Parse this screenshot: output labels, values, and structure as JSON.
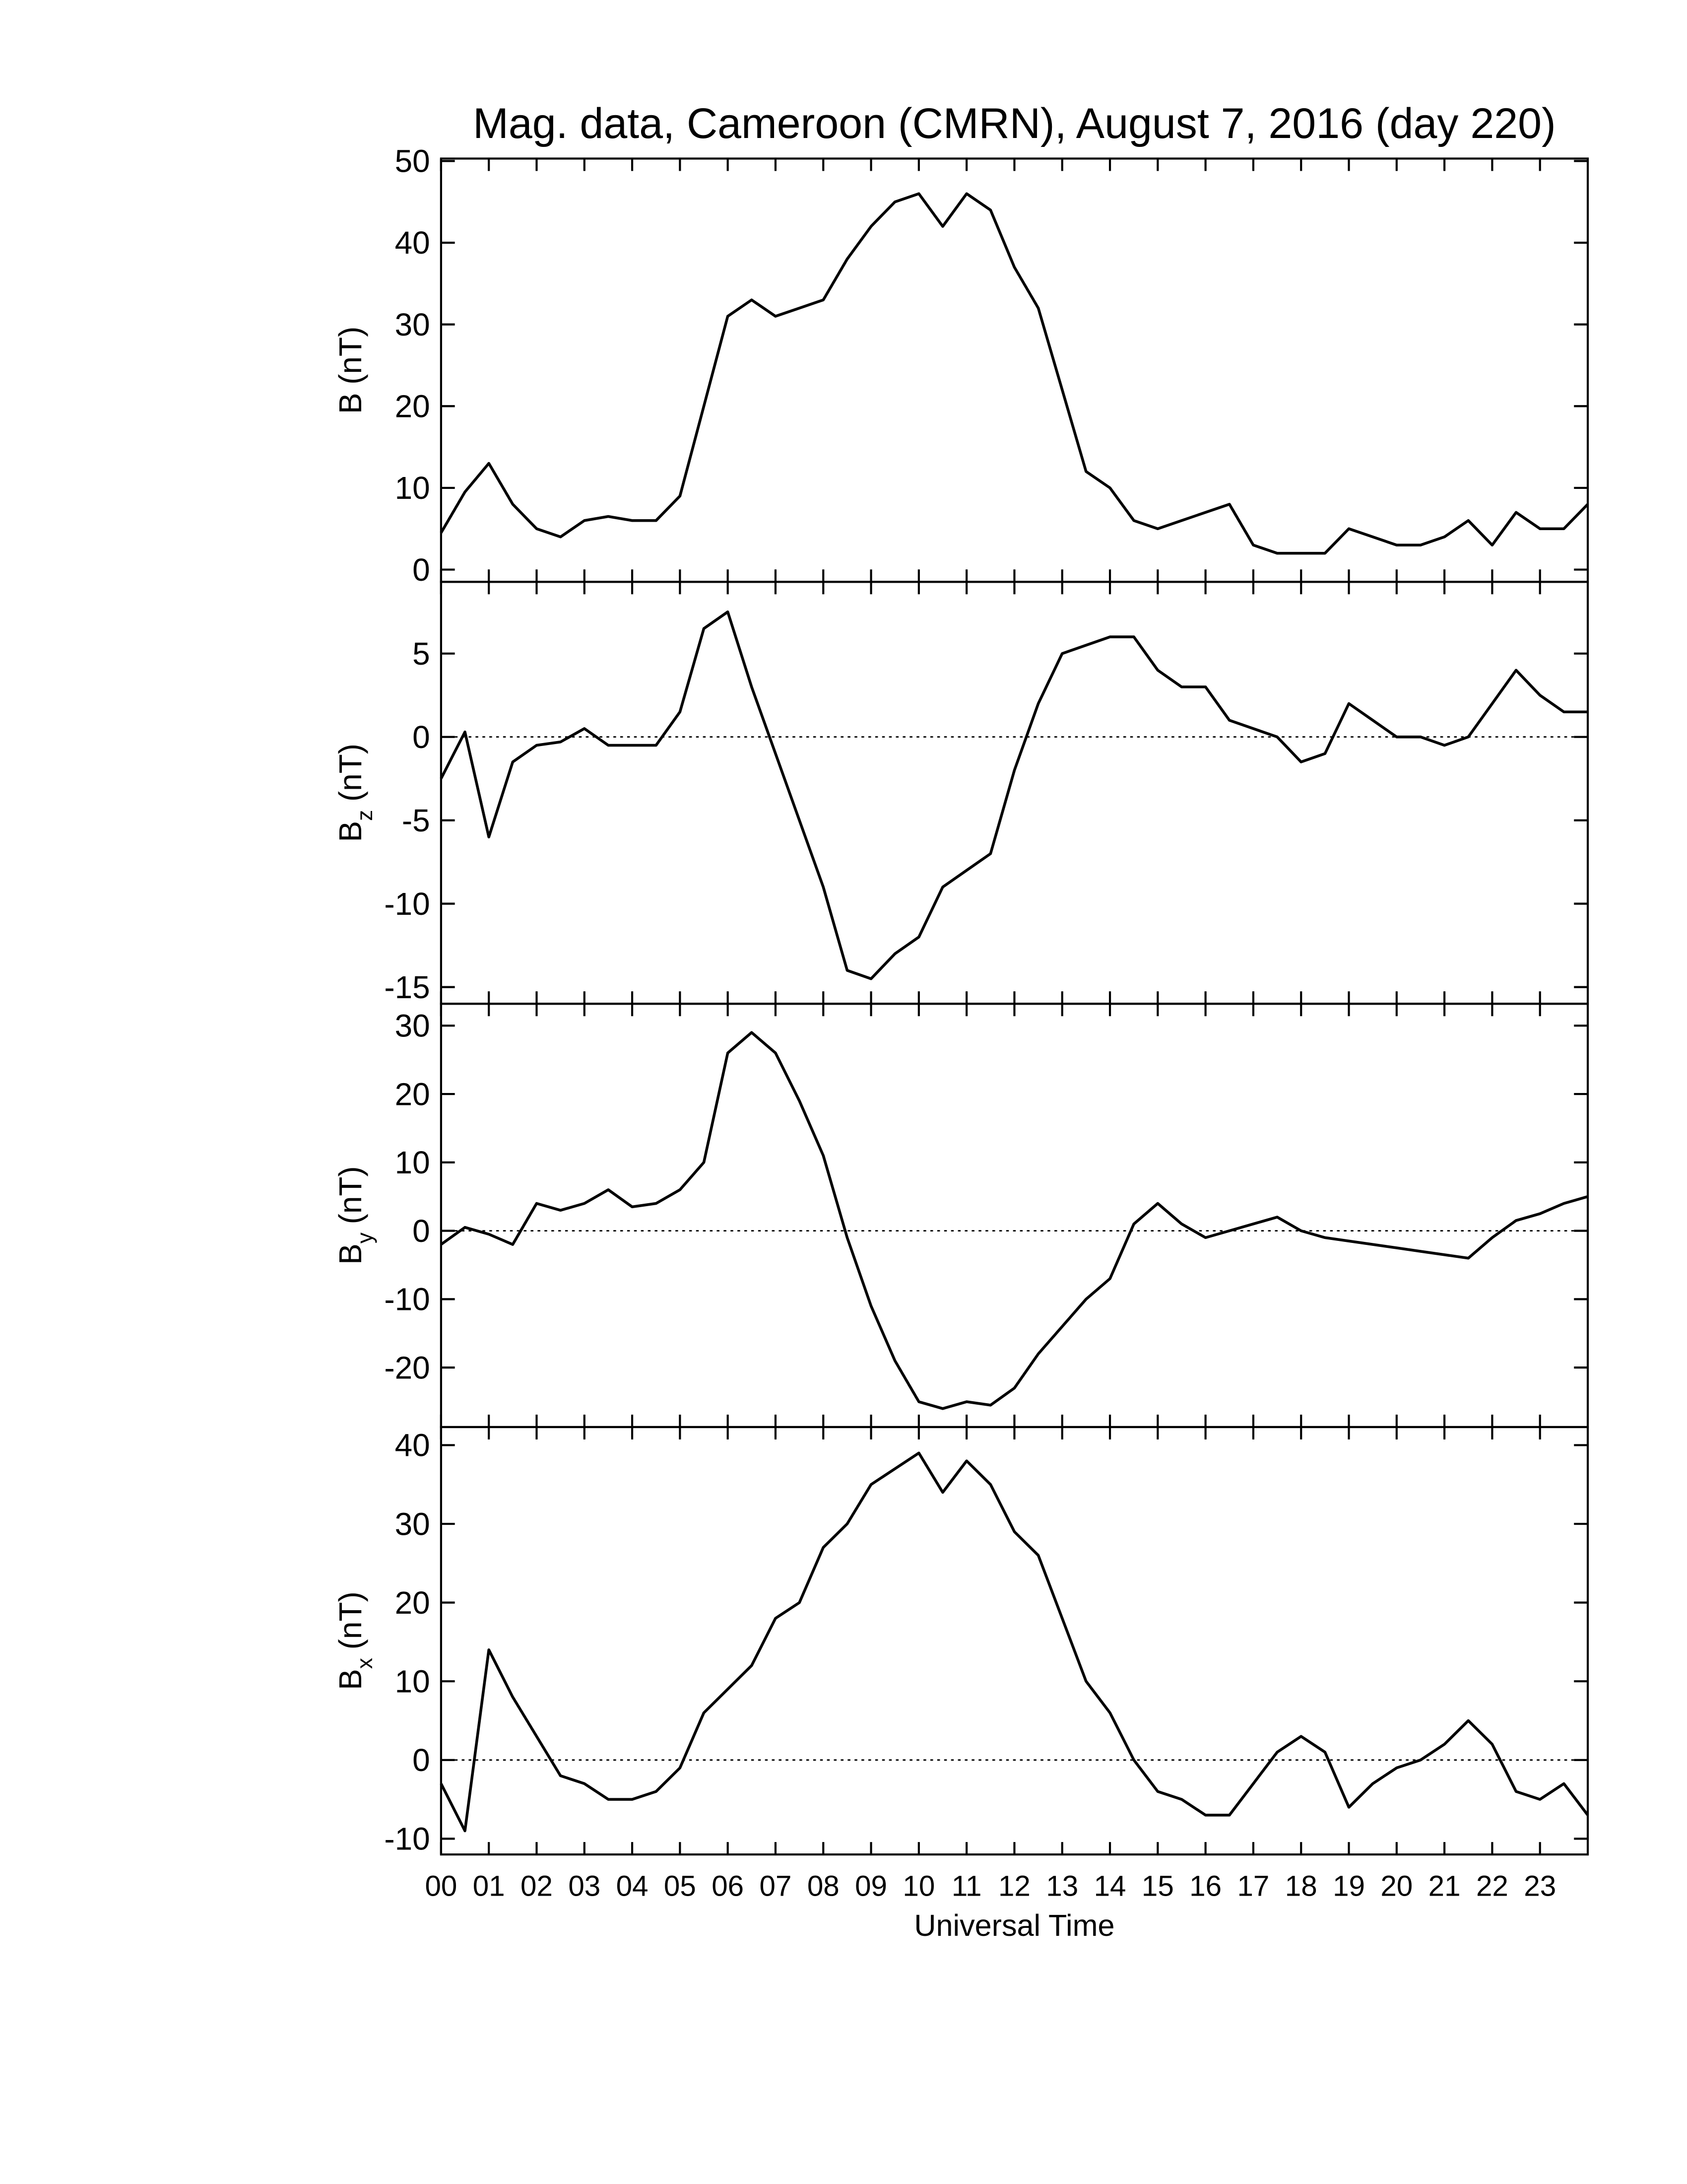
{
  "chart_data": [
    {
      "type": "line",
      "title": "Mag. data, Cameroon (CMRN), August 7, 2016 (day 220)",
      "ylabel": {
        "text": "B",
        "unit": "(nT)"
      },
      "ylim": [
        -1.5,
        50.3
      ],
      "yticks": [
        0,
        10,
        20,
        30,
        40,
        50
      ],
      "zero_line": false,
      "series": [
        {
          "color": "#000000",
          "values": [
            4.5,
            9.5,
            13,
            8,
            5,
            4,
            6,
            6.5,
            6,
            6,
            9,
            20,
            31,
            33,
            31,
            32,
            33,
            38,
            42,
            45,
            46,
            42,
            46,
            44,
            37,
            32,
            22,
            12,
            10,
            6,
            5,
            6,
            7,
            8,
            3,
            2,
            2,
            2,
            5,
            4,
            3,
            3,
            4,
            6,
            3,
            7,
            5,
            5,
            8
          ]
        }
      ]
    },
    {
      "type": "line",
      "ylabel": {
        "text": "B",
        "sub": "z",
        "unit": "(nT)"
      },
      "ylim": [
        -16,
        9.3
      ],
      "yticks": [
        -15,
        -10,
        -5,
        0,
        5
      ],
      "zero_line": true,
      "series": [
        {
          "color": "#000000",
          "values": [
            -2.5,
            0.3,
            -6,
            -1.5,
            -0.5,
            -0.3,
            0.5,
            -0.5,
            -0.5,
            -0.5,
            1.5,
            6.5,
            7.5,
            3,
            -1,
            -5,
            -9,
            -14,
            -14.5,
            -13,
            -12,
            -9,
            -8,
            -7,
            -2,
            2,
            5,
            5.5,
            6,
            6,
            4,
            3,
            3,
            1,
            0.5,
            0,
            -1.5,
            -1,
            2,
            1,
            0,
            0,
            -0.5,
            0,
            2,
            4,
            2.5,
            1.5,
            1.5
          ]
        }
      ]
    },
    {
      "type": "line",
      "ylabel": {
        "text": "B",
        "sub": "y",
        "unit": "(nT)"
      },
      "ylim": [
        -28.7,
        33.2
      ],
      "yticks": [
        -20,
        -10,
        0,
        10,
        20,
        30
      ],
      "zero_line": true,
      "series": [
        {
          "color": "#000000",
          "values": [
            -2,
            0.5,
            -0.5,
            -2,
            4,
            3,
            4,
            6,
            3.5,
            4,
            6,
            10,
            26,
            29,
            26,
            19,
            11,
            -1,
            -11,
            -19,
            -25,
            -26,
            -25,
            -25.5,
            -23,
            -18,
            -14,
            -10,
            -7,
            1,
            4,
            1,
            -1,
            0,
            1,
            2,
            0,
            -1,
            -1.5,
            -2,
            -2.5,
            -3,
            -3.5,
            -4,
            -1,
            1.5,
            2.5,
            4,
            5
          ]
        }
      ]
    },
    {
      "type": "line",
      "ylabel": {
        "text": "B",
        "sub": "x",
        "unit": "(nT)"
      },
      "ylim": [
        -12,
        42.3
      ],
      "yticks": [
        -10,
        0,
        10,
        20,
        30,
        40
      ],
      "zero_line": true,
      "xlabel": "Universal Time",
      "xlim": [
        0,
        24
      ],
      "x": [
        0,
        0.5,
        1,
        1.5,
        2,
        2.5,
        3,
        3.5,
        4,
        4.5,
        5,
        5.5,
        6,
        6.5,
        7,
        7.5,
        8,
        8.5,
        9,
        9.5,
        10,
        10.5,
        11,
        11.5,
        12,
        12.5,
        13,
        13.5,
        14,
        14.5,
        15,
        15.5,
        16,
        16.5,
        17,
        17.5,
        18,
        18.5,
        19,
        19.5,
        20,
        20.5,
        21,
        21.5,
        22,
        22.5,
        23,
        23.5,
        24
      ],
      "xticks": [
        {
          "value": 0,
          "label": "00"
        },
        {
          "value": 1,
          "label": "01"
        },
        {
          "value": 2,
          "label": "02"
        },
        {
          "value": 3,
          "label": "03"
        },
        {
          "value": 4,
          "label": "04"
        },
        {
          "value": 5,
          "label": "05"
        },
        {
          "value": 6,
          "label": "06"
        },
        {
          "value": 7,
          "label": "07"
        },
        {
          "value": 8,
          "label": "08"
        },
        {
          "value": 9,
          "label": "09"
        },
        {
          "value": 10,
          "label": "10"
        },
        {
          "value": 11,
          "label": "11"
        },
        {
          "value": 12,
          "label": "12"
        },
        {
          "value": 13,
          "label": "13"
        },
        {
          "value": 14,
          "label": "14"
        },
        {
          "value": 15,
          "label": "15"
        },
        {
          "value": 16,
          "label": "16"
        },
        {
          "value": 17,
          "label": "17"
        },
        {
          "value": 18,
          "label": "18"
        },
        {
          "value": 19,
          "label": "19"
        },
        {
          "value": 20,
          "label": "20"
        },
        {
          "value": 21,
          "label": "21"
        },
        {
          "value": 22,
          "label": "22"
        },
        {
          "value": 23,
          "label": "23"
        }
      ],
      "series": [
        {
          "color": "#000000",
          "values": [
            -3,
            -9,
            14,
            8,
            3,
            -2,
            -3,
            -5,
            -5,
            -4,
            -1,
            6,
            9,
            12,
            18,
            20,
            27,
            30,
            35,
            37,
            39,
            34,
            38,
            35,
            29,
            26,
            18,
            10,
            6,
            0,
            -4,
            -5,
            -7,
            -7,
            -3,
            1,
            3,
            1,
            -6,
            -3,
            -1,
            0,
            2,
            5,
            2,
            -4,
            -5,
            -3,
            -7
          ]
        }
      ]
    }
  ]
}
